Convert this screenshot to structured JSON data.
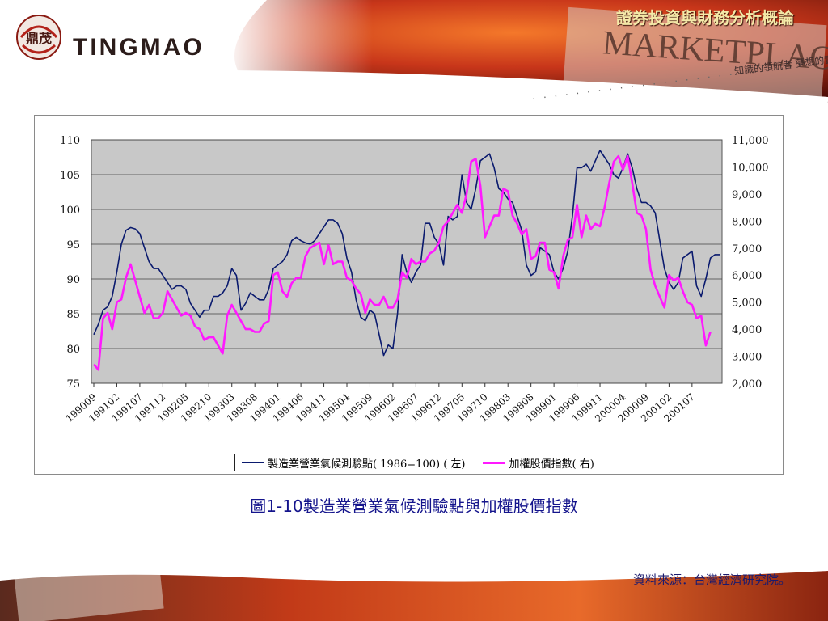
{
  "header": {
    "brand": "TINGMAO",
    "logo_text": "鼎茂",
    "course_title": "證券投資與財務分析概論",
    "background_sign": "MARKETPLACE",
    "tagline": "知識的領航者 夢想的實踐家"
  },
  "colors": {
    "banner_dark": "#5a1208",
    "banner_orange": "#e85c1e",
    "plot_bg": "#c8c8c8",
    "series1": "#0a1a6e",
    "series2": "#ff19ff",
    "caption": "#14148c"
  },
  "caption": {
    "prefix": "圖",
    "number": "1-10",
    "text": "製造業營業氣候測驗點與加權股價指數"
  },
  "source_note": "資料來源：台灣經濟研究院。",
  "chart_data": {
    "type": "line",
    "title": "",
    "legend_position": "bottom",
    "grid": true,
    "x_tick_labels": [
      "199009",
      "199102",
      "199107",
      "199112",
      "199205",
      "199210",
      "199303",
      "199308",
      "199401",
      "199406",
      "199411",
      "199504",
      "199509",
      "199602",
      "199607",
      "199612",
      "199705",
      "199710",
      "199803",
      "199808",
      "199901",
      "199906",
      "199911",
      "200004",
      "200009",
      "200102",
      "200107"
    ],
    "x_range": [
      "199009",
      "200111"
    ],
    "y_left": {
      "ticks": [
        "75",
        "80",
        "85",
        "90",
        "95",
        "100",
        "105",
        "110"
      ],
      "range": [
        75,
        110
      ]
    },
    "y_right": {
      "ticks": [
        "2,000",
        "3,000",
        "4,000",
        "5,000",
        "6,000",
        "7,000",
        "8,000",
        "9,000",
        "10,000",
        "11,000"
      ],
      "range": [
        2000,
        11000
      ]
    },
    "series": [
      {
        "name": "製造業營業氣候測驗點( 1986=100) ( 左)",
        "axis": "left",
        "values": [
          82,
          83.5,
          85.5,
          86,
          87.5,
          91,
          95,
          97,
          97.4,
          97.2,
          96.5,
          94.5,
          92.5,
          91.5,
          91.5,
          90.5,
          89.5,
          88.5,
          89,
          89,
          88.5,
          86.5,
          85.5,
          84.5,
          85.5,
          85.5,
          87.5,
          87.5,
          88,
          89,
          91.5,
          90.5,
          85.5,
          86.5,
          88,
          87.5,
          87,
          87,
          88.5,
          91.5,
          92,
          92.5,
          93.5,
          95.5,
          96,
          95.5,
          95.2,
          95,
          95.5,
          96.5,
          97.5,
          98.5,
          98.5,
          98,
          96.5,
          93,
          91,
          87,
          84.5,
          84,
          85.5,
          85,
          82,
          79,
          80.5,
          80,
          85,
          93.5,
          91,
          89.5,
          91,
          92,
          98,
          98,
          96,
          95,
          92,
          99,
          98.5,
          99,
          105,
          101,
          100,
          103,
          107,
          107.5,
          108,
          106,
          103,
          102.5,
          101.5,
          101,
          99,
          97,
          92,
          90.5,
          91,
          94.5,
          94,
          93.5,
          91,
          90,
          91.5,
          94,
          99,
          106,
          106,
          106.5,
          105.5,
          107,
          108.5,
          107.5,
          106.5,
          105,
          104.5,
          106,
          108,
          106,
          103,
          101,
          101,
          100.5,
          99.5,
          95.5,
          91.5,
          89.5,
          88.5,
          89.5,
          93,
          93.5,
          94,
          89,
          87.5,
          90,
          93,
          93.5,
          93.5
        ]
      },
      {
        "name": "加權股價指數( 右)",
        "axis": "right",
        "values": [
          2700,
          2500,
          4400,
          4600,
          4000,
          5000,
          5100,
          5900,
          6400,
          5800,
          5200,
          4600,
          4900,
          4400,
          4400,
          4600,
          5400,
          5100,
          4800,
          4500,
          4600,
          4500,
          4100,
          4000,
          3600,
          3700,
          3700,
          3400,
          3100,
          4500,
          4900,
          4600,
          4300,
          4000,
          4000,
          3900,
          3900,
          4200,
          4300,
          6000,
          6100,
          5400,
          5200,
          5700,
          5900,
          5900,
          6700,
          7000,
          7100,
          7200,
          6400,
          7100,
          6400,
          6500,
          6500,
          5900,
          5800,
          5500,
          5300,
          4600,
          5100,
          4900,
          4900,
          5200,
          4800,
          4800,
          5100,
          6100,
          5900,
          6600,
          6400,
          6500,
          6500,
          6800,
          6900,
          7200,
          7800,
          8000,
          8300,
          8600,
          8300,
          9000,
          10200,
          10300,
          9300,
          7400,
          7800,
          8200,
          8200,
          9200,
          9100,
          8200,
          7900,
          7500,
          7700,
          6600,
          6700,
          7200,
          7200,
          6200,
          6100,
          5500,
          6700,
          7300,
          7400,
          8600,
          7400,
          8200,
          7700,
          7900,
          7800,
          8500,
          9400,
          10200,
          10400,
          9900,
          10400,
          9400,
          8300,
          8200,
          7700,
          6200,
          5600,
          5200,
          4800,
          6000,
          5800,
          5900,
          5400,
          5000,
          4900,
          4400,
          4500,
          3400,
          3900
        ]
      }
    ]
  }
}
